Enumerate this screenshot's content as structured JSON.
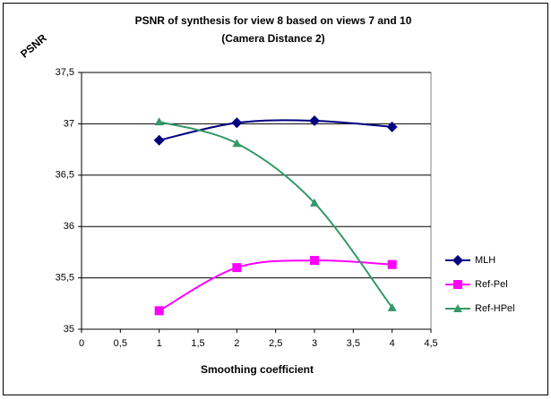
{
  "chart_data": {
    "type": "line",
    "title": "PSNR of synthesis for view 8 based on views 7 and 10",
    "subtitle": "(Camera Distance 2)",
    "ylabel": "PSNR",
    "xlabel": "Smoothing coefficient",
    "x": [
      1,
      2,
      3,
      4
    ],
    "series": [
      {
        "name": "MLH",
        "color": "#000080",
        "marker": "diamond",
        "values": [
          36.84,
          37.01,
          37.03,
          36.97
        ]
      },
      {
        "name": "Ref-Pel",
        "color": "#ff00ff",
        "marker": "square",
        "values": [
          35.18,
          35.6,
          35.67,
          35.63
        ]
      },
      {
        "name": "Ref-HPel",
        "color": "#339966",
        "marker": "triangle",
        "values": [
          37.02,
          36.81,
          36.23,
          35.21
        ]
      }
    ],
    "xlim": [
      0,
      4.5
    ],
    "xticks": [
      0,
      {
        "value": 0.5,
        "label": "0,5"
      },
      1,
      {
        "value": 1.5,
        "label": "1,5"
      },
      2,
      {
        "value": 2.5,
        "label": "2,5"
      },
      3,
      {
        "value": 3.5,
        "label": "3,5"
      },
      4,
      {
        "value": 4.5,
        "label": "4,5"
      }
    ],
    "ylim": [
      35,
      37.5
    ],
    "yticks": [
      35,
      {
        "value": 35.5,
        "label": "35,5"
      },
      36,
      {
        "value": 36.5,
        "label": "36,5"
      },
      37,
      {
        "value": 37.5,
        "label": "37,5"
      }
    ],
    "grid": true,
    "smooth": true,
    "legend": "right"
  }
}
